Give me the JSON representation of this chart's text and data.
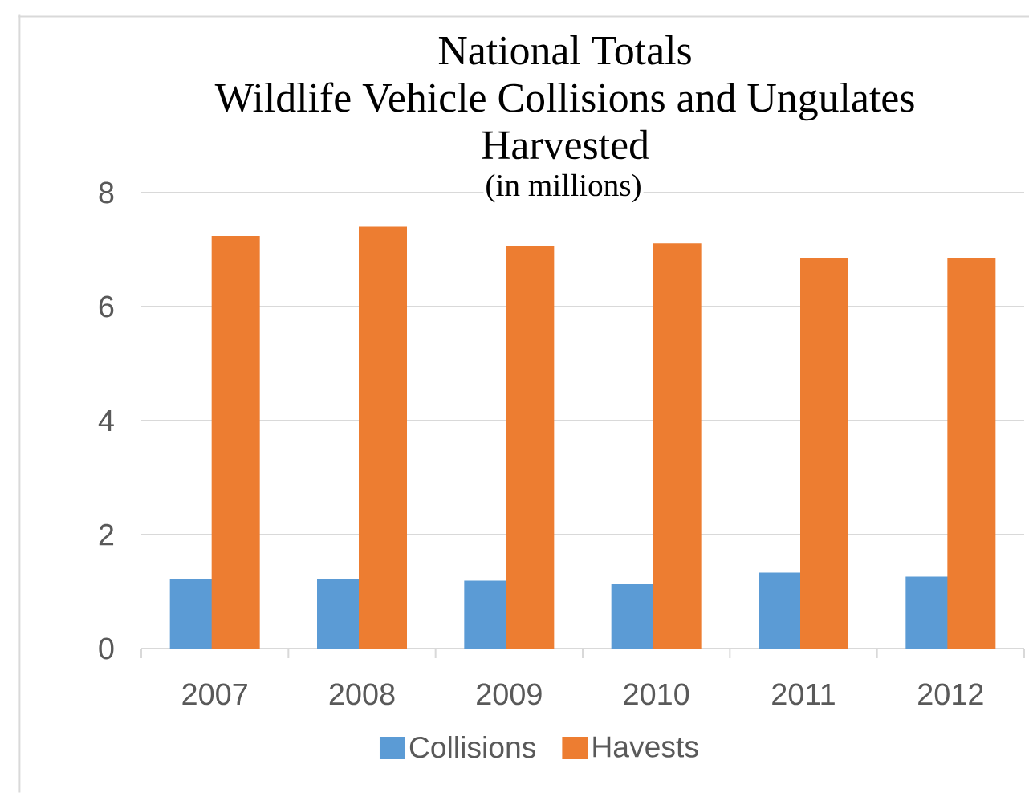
{
  "chart_data": {
    "type": "bar",
    "title": "National Totals",
    "subtitle": "Wildlife Vehicle Collisions and Ungulates Harvested",
    "annotations": [
      "(in millions)"
    ],
    "categories": [
      "2007",
      "2008",
      "2009",
      "2010",
      "2011",
      "2012"
    ],
    "series": [
      {
        "name": "Collisions",
        "color": "#5b9bd5",
        "values": [
          1.22,
          1.22,
          1.19,
          1.13,
          1.33,
          1.26
        ]
      },
      {
        "name": "Havests",
        "color": "#ed7d31",
        "values": [
          7.24,
          7.4,
          7.06,
          7.11,
          6.86,
          6.86
        ]
      }
    ],
    "ylim": [
      0,
      8
    ],
    "yticks": [
      0,
      2,
      4,
      6,
      8
    ],
    "grid": "y",
    "legend": "bottom"
  }
}
